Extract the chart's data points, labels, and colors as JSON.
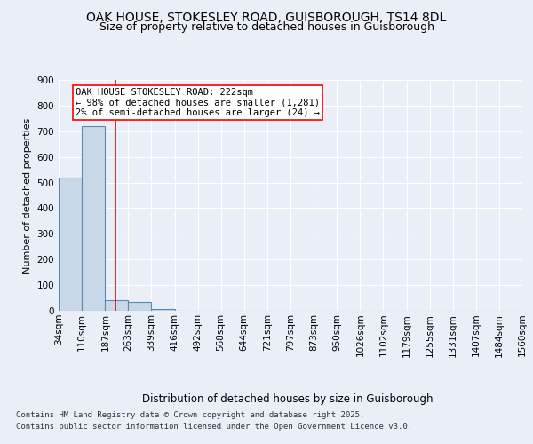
{
  "title1": "OAK HOUSE, STOKESLEY ROAD, GUISBOROUGH, TS14 8DL",
  "title2": "Size of property relative to detached houses in Guisborough",
  "xlabel": "Distribution of detached houses by size in Guisborough",
  "ylabel": "Number of detached properties",
  "bar_edges": [
    34,
    110,
    187,
    263,
    339,
    416,
    492,
    568,
    644,
    721,
    797,
    873,
    950,
    1026,
    1102,
    1179,
    1255,
    1331,
    1407,
    1484,
    1560
  ],
  "bar_heights": [
    520,
    720,
    40,
    35,
    8,
    0,
    0,
    0,
    0,
    0,
    0,
    0,
    0,
    0,
    0,
    0,
    0,
    0,
    0,
    0
  ],
  "bar_color": "#c8d8e8",
  "bar_edge_color": "#5a8ab0",
  "bar_linewidth": 0.8,
  "redline_x": 222,
  "annotation_text": "OAK HOUSE STOKESLEY ROAD: 222sqm\n← 98% of detached houses are smaller (1,281)\n2% of semi-detached houses are larger (24) →",
  "annotation_box_color": "white",
  "annotation_box_edge_color": "red",
  "redline_color": "red",
  "redline_linewidth": 1.2,
  "ylim": [
    0,
    900
  ],
  "yticks": [
    0,
    100,
    200,
    300,
    400,
    500,
    600,
    700,
    800,
    900
  ],
  "bg_color": "#eaeff7",
  "grid_color": "white",
  "footer1": "Contains HM Land Registry data © Crown copyright and database right 2025.",
  "footer2": "Contains public sector information licensed under the Open Government Licence v3.0.",
  "title1_fontsize": 10,
  "title2_fontsize": 9,
  "xlabel_fontsize": 8.5,
  "ylabel_fontsize": 8,
  "tick_fontsize": 7.5,
  "annotation_fontsize": 7.5,
  "footer_fontsize": 6.5
}
